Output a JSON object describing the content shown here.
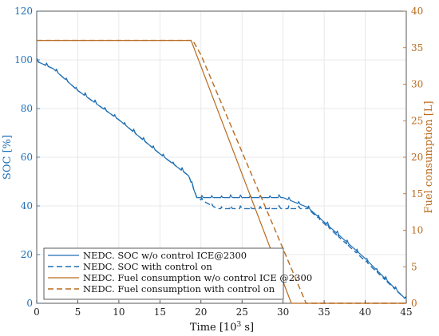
{
  "chart_data": {
    "type": "line",
    "xlabel": "Time [10",
    "xlabel_sup": "3",
    "xlabel_tail": " s]",
    "ylabel_left": "SOC [%]",
    "ylabel_right": "Fuel consumption [L]",
    "xlim": [
      0,
      45
    ],
    "ylim_left": [
      0,
      120
    ],
    "ylim_right": [
      0,
      40
    ],
    "xticks": [
      0,
      5,
      10,
      15,
      20,
      25,
      30,
      35,
      40,
      45
    ],
    "yticks_left": [
      0,
      20,
      40,
      60,
      80,
      100,
      120
    ],
    "yticks_right": [
      0,
      5,
      10,
      15,
      20,
      25,
      30,
      35,
      40
    ],
    "grid": true,
    "legend_position": "bottom-left",
    "colors": {
      "soc": "#1f6fb5",
      "fuel": "#b86b1f"
    },
    "series": [
      {
        "name": "NEDC. SOC w/o control ICE@2300",
        "axis": "left",
        "style": "solid",
        "color": "#1f6fb5",
        "x": [
          0,
          2,
          5,
          10,
          15,
          18.5,
          19.5,
          25,
          30,
          31.5,
          33,
          40,
          45
        ],
        "y": [
          100,
          97,
          88,
          76,
          62,
          53,
          44,
          44,
          44,
          42,
          40,
          19,
          2
        ]
      },
      {
        "name": "NEDC. SOC with control on",
        "axis": "left",
        "style": "dashed",
        "color": "#1f6fb5",
        "x": [
          0,
          2,
          5,
          10,
          15,
          18.5,
          19.5,
          22,
          30,
          33,
          40,
          45
        ],
        "y": [
          100,
          97,
          88,
          76,
          62,
          53,
          44,
          39.5,
          39.5,
          39.5,
          18,
          2
        ]
      },
      {
        "name": "NEDC. Fuel consumption w/o control ICE @2300",
        "axis": "right",
        "style": "solid",
        "color": "#b86b1f",
        "x": [
          0,
          18.8,
          31,
          45
        ],
        "y": [
          36,
          36,
          0,
          0
        ]
      },
      {
        "name": "NEDC. Fuel consumption with control on",
        "axis": "right",
        "style": "dashed",
        "color": "#b86b1f",
        "x": [
          0,
          19,
          20,
          32.8,
          45
        ],
        "y": [
          36,
          36,
          34,
          0,
          0
        ]
      }
    ]
  }
}
